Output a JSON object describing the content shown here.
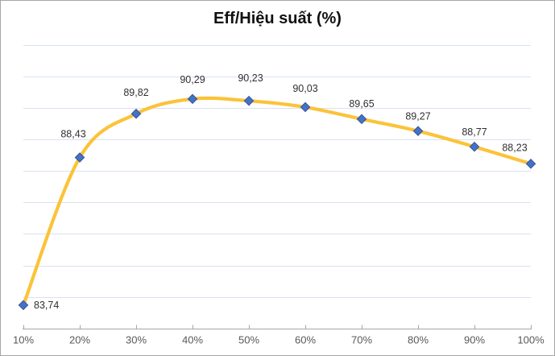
{
  "title": "Eff/Hiệu suất (%)",
  "chart_data": {
    "type": "line",
    "title": "Eff/Hiệu suất (%)",
    "xlabel": "",
    "ylabel": "",
    "categories": [
      "10%",
      "20%",
      "30%",
      "40%",
      "50%",
      "60%",
      "70%",
      "80%",
      "90%",
      "100%"
    ],
    "values": [
      83.74,
      88.43,
      89.82,
      90.29,
      90.23,
      90.03,
      89.65,
      89.27,
      88.77,
      88.23
    ],
    "labels": [
      "83,74",
      "88,43",
      "89,82",
      "90,29",
      "90,23",
      "90,03",
      "89,65",
      "89,27",
      "88,77",
      "88,23"
    ],
    "ylim": [
      83,
      92
    ],
    "grid": true,
    "grid_step": 1,
    "smooth": true,
    "legend_position": "none",
    "marker": "diamond",
    "colors": {
      "line": "#FBC33A",
      "marker_fill": "#4472C4",
      "marker_stroke": "#35549B",
      "gridline": "#D9E1F2",
      "axis": "#A6A6A6",
      "tick_label": "#595959",
      "data_label": "#303030",
      "border": "#A6A6A6",
      "background": "#FFFFFF"
    },
    "label_offsets": {
      "0": {
        "dx": 13,
        "dy": 4,
        "anchor": "start"
      },
      "1": {
        "dx": -8,
        "dy": -25
      },
      "2": {
        "dx": 0,
        "dy": -22
      },
      "3": {
        "dx": 0,
        "dy": -20
      },
      "4": {
        "dx": 2,
        "dy": -24
      },
      "5": {
        "dx": 0,
        "dy": -19
      },
      "6": {
        "dx": 0,
        "dy": -15
      },
      "7": {
        "dx": 0,
        "dy": -14
      },
      "8": {
        "dx": 0,
        "dy": -14
      },
      "9": {
        "dx": -20,
        "dy": -16
      }
    }
  }
}
